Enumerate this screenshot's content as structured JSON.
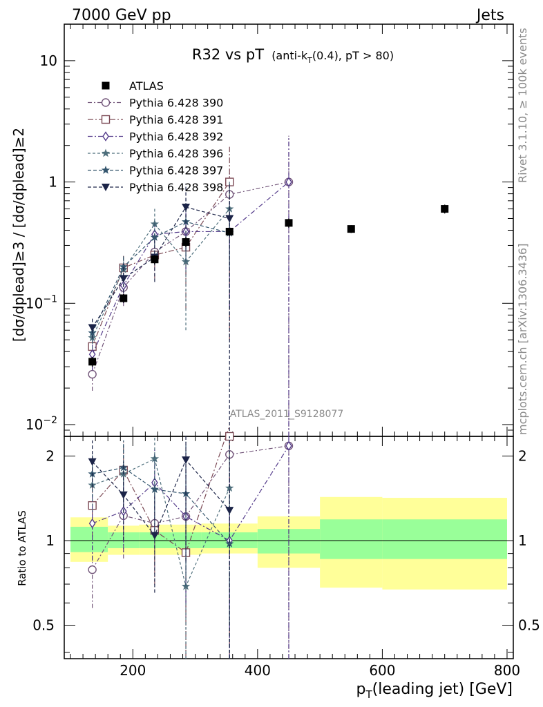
{
  "header": {
    "left": "7000 GeV pp",
    "right": "Jets"
  },
  "side_labels": {
    "rivet": "Rivet 3.1.10, ≥ 100k events",
    "mcplots": "mcplots.cern.ch [arXiv:1306.3436]"
  },
  "analysis_id": "ATLAS_2011_S9128077",
  "chart_data": {
    "type": "scatter",
    "title": "R32 vs pT",
    "title_sub": "(anti-k_T(0.4), pT > 80)",
    "xlabel": "p_T(leading jet) [GeV]",
    "ylabel": "[dσ/dp_T^lead]^≥3 / [dσ/dp_T^lead]^≥2",
    "ratio_ylabel": "Ratio to ATLAS",
    "xlim": [
      90,
      810
    ],
    "ylim": [
      0.008,
      20
    ],
    "yscale": "log",
    "ratio_ylim": [
      0.38,
      2.35
    ],
    "ratio_yscale": "log",
    "x_ticks": [
      200,
      400,
      600,
      800
    ],
    "y_ticks": [
      {
        "value": 0.01,
        "label": "10^-2"
      },
      {
        "value": 0.1,
        "label": "10^-1"
      },
      {
        "value": 1,
        "label": "1"
      },
      {
        "value": 10,
        "label": "10"
      }
    ],
    "ratio_ticks": [
      {
        "value": 0.5,
        "label": "0.5"
      },
      {
        "value": 1,
        "label": "1"
      },
      {
        "value": 2,
        "label": "2"
      }
    ],
    "legend_position": "top-left",
    "reference": {
      "name": "ATLAS",
      "color": "#000000",
      "marker": "square",
      "points": [
        {
          "x": 135,
          "xlo": 110,
          "xhi": 160,
          "y": 0.033,
          "err": 0.003
        },
        {
          "x": 185,
          "xlo": 160,
          "xhi": 210,
          "y": 0.11,
          "err": 0.009
        },
        {
          "x": 235,
          "xlo": 210,
          "xhi": 260,
          "y": 0.23,
          "err": 0.02
        },
        {
          "x": 285,
          "xlo": 260,
          "xhi": 310,
          "y": 0.32,
          "err": 0.03
        },
        {
          "x": 355,
          "xlo": 310,
          "xhi": 400,
          "y": 0.39,
          "err": 0.03
        },
        {
          "x": 450,
          "xlo": 400,
          "xhi": 500,
          "y": 0.46,
          "err": 0.04
        },
        {
          "x": 550,
          "xlo": 500,
          "xhi": 600,
          "y": 0.41,
          "err": 0.03
        },
        {
          "x": 700,
          "xlo": 600,
          "xhi": 800,
          "y": 0.6,
          "err": 0.05
        }
      ],
      "bands": [
        {
          "xlo": 100,
          "xhi": 160,
          "inner": [
            0.91,
            1.12
          ],
          "outer": [
            0.84,
            1.21
          ]
        },
        {
          "xlo": 160,
          "xhi": 210,
          "inner": [
            0.94,
            1.07
          ],
          "outer": [
            0.89,
            1.13
          ]
        },
        {
          "xlo": 210,
          "xhi": 310,
          "inner": [
            0.94,
            1.07
          ],
          "outer": [
            0.89,
            1.14
          ]
        },
        {
          "xlo": 310,
          "xhi": 400,
          "inner": [
            0.94,
            1.07
          ],
          "outer": [
            0.9,
            1.15
          ]
        },
        {
          "xlo": 400,
          "xhi": 500,
          "inner": [
            0.9,
            1.1
          ],
          "outer": [
            0.8,
            1.22
          ]
        },
        {
          "xlo": 500,
          "xhi": 600,
          "inner": [
            0.86,
            1.19
          ],
          "outer": [
            0.68,
            1.43
          ]
        },
        {
          "xlo": 600,
          "xhi": 800,
          "inner": [
            0.86,
            1.19
          ],
          "outer": [
            0.67,
            1.42
          ]
        }
      ]
    },
    "series": [
      {
        "name": "Pythia 6.428 390",
        "color": "#73567a",
        "marker": "circle",
        "dash": "6 3 2 3",
        "points": [
          {
            "x": 135,
            "y": 0.026,
            "err": 0.007
          },
          {
            "x": 185,
            "y": 0.135,
            "err": 0.04
          },
          {
            "x": 235,
            "y": 0.265,
            "err": 0.08
          },
          {
            "x": 285,
            "y": 0.39,
            "err": 0.22
          },
          {
            "x": 355,
            "y": 0.79,
            "err": 0.45
          },
          {
            "x": 450,
            "y": 1.0,
            "err": 1.4
          }
        ]
      },
      {
        "name": "Pythia 6.428 391",
        "color": "#7c4a55",
        "marker": "square-open",
        "dash": "8 3 2 3",
        "points": [
          {
            "x": 135,
            "y": 0.044,
            "err": 0.01
          },
          {
            "x": 185,
            "y": 0.196,
            "err": 0.05
          },
          {
            "x": 235,
            "y": 0.25,
            "err": 0.09
          },
          {
            "x": 285,
            "y": 0.29,
            "err": 0.2
          },
          {
            "x": 355,
            "y": 1.0,
            "err": 0.95
          }
        ]
      },
      {
        "name": "Pythia 6.428 392",
        "color": "#533a8a",
        "marker": "diamond-open",
        "dash": "7 3 2 3",
        "points": [
          {
            "x": 135,
            "y": 0.038,
            "err": 0.01
          },
          {
            "x": 185,
            "y": 0.14,
            "err": 0.04
          },
          {
            "x": 235,
            "y": 0.37,
            "err": 0.12
          },
          {
            "x": 285,
            "y": 0.39,
            "err": 0.2
          },
          {
            "x": 355,
            "y": 0.39,
            "err": 0.3
          },
          {
            "x": 450,
            "y": 1.0,
            "err": 1.4
          }
        ]
      },
      {
        "name": "Pythia 6.428 396",
        "color": "#4e6f7c",
        "marker": "star",
        "dash": "4 3",
        "points": [
          {
            "x": 135,
            "y": 0.052,
            "err": 0.01
          },
          {
            "x": 185,
            "y": 0.19,
            "err": 0.05
          },
          {
            "x": 235,
            "y": 0.45,
            "err": 0.15
          },
          {
            "x": 285,
            "y": 0.22,
            "err": 0.16
          },
          {
            "x": 355,
            "y": 0.6,
            "err": 0.4
          }
        ]
      },
      {
        "name": "Pythia 6.428 397",
        "color": "#34566e",
        "marker": "star",
        "dash": "5 3",
        "points": [
          {
            "x": 135,
            "y": 0.057,
            "err": 0.01
          },
          {
            "x": 185,
            "y": 0.2,
            "err": 0.05
          },
          {
            "x": 235,
            "y": 0.35,
            "err": 0.12
          },
          {
            "x": 285,
            "y": 0.47,
            "err": 0.25
          },
          {
            "x": 355,
            "y": 0.38,
            "err": 0.3
          }
        ]
      },
      {
        "name": "Pythia 6.428 398",
        "color": "#1c2448",
        "marker": "triangle-down",
        "dash": "5 3",
        "points": [
          {
            "x": 135,
            "y": 0.063,
            "err": 0.012
          },
          {
            "x": 185,
            "y": 0.16,
            "err": 0.05
          },
          {
            "x": 235,
            "y": 0.24,
            "err": 0.09
          },
          {
            "x": 285,
            "y": 0.62,
            "err": 0.35
          },
          {
            "x": 355,
            "y": 0.5,
            "err": 0.5
          }
        ]
      }
    ]
  }
}
